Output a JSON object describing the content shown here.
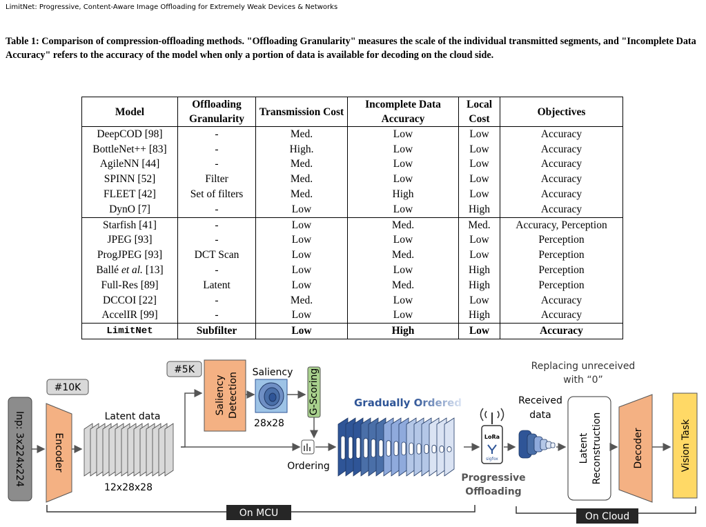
{
  "header": "LimitNet: Progressive, Content-Aware Image Offloading for Extremely Weak Devices & Networks",
  "caption": "Table 1: Comparison of compression-offloading methods. \"Offloading Granularity\" measures the scale of the individual transmitted segments, and \"Incomplete Data Accuracy\" refers to the accuracy of the model when only a portion of data is available for decoding on the cloud side.",
  "table": {
    "columns": [
      "Model",
      "Offloading Granularity",
      "Transmission Cost",
      "Incomplete Data Accuracy",
      "Local Cost",
      "Objectives"
    ],
    "rows": [
      [
        "DeepCOD [98]",
        "-",
        "Med.",
        "Low",
        "Low",
        "Accuracy"
      ],
      [
        "BottleNet++ [83]",
        "-",
        "High.",
        "Low",
        "Low",
        "Accuracy"
      ],
      [
        "AgileNN [44]",
        "-",
        "Med.",
        "Low",
        "Low",
        "Accuracy"
      ],
      [
        "SPINN [52]",
        "Filter",
        "Med.",
        "Low",
        "Low",
        "Accuracy"
      ],
      [
        "FLEET [42]",
        "Set of filters",
        "Med.",
        "High",
        "Low",
        "Accuracy"
      ],
      [
        "DynO [7]",
        "-",
        "Low",
        "Low",
        "High",
        "Accuracy"
      ],
      [
        "Starfish [41]",
        "-",
        "Low",
        "Med.",
        "Med.",
        "Accuracy, Perception"
      ],
      [
        "JPEG [93]",
        "-",
        "Low",
        "Low",
        "Low",
        "Perception"
      ],
      [
        "ProgJPEG [93]",
        "DCT Scan",
        "Low",
        "Med.",
        "Low",
        "Perception"
      ],
      [
        [
          "Ballé ",
          "et al.",
          " [13]"
        ],
        "-",
        "Low",
        "Low",
        "High",
        "Perception"
      ],
      [
        "Full-Res [89]",
        "Latent",
        "Low",
        "Med.",
        "High",
        "Perception"
      ],
      [
        "DCCOI [22]",
        "-",
        "Med.",
        "Low",
        "Low",
        "Accuracy"
      ],
      [
        "AccelIR [99]",
        "-",
        "Low",
        "Low",
        "High",
        "Accuracy"
      ],
      [
        "LimitNet",
        "Subfilter",
        "Low",
        "High",
        "Low",
        "Accuracy"
      ]
    ]
  },
  "figure": {
    "encoder_params": "#10K",
    "saliency_params": "#5K",
    "input": "Inp: 3x224x224",
    "encoder": "Encoder",
    "latent_label": "Latent data",
    "latent_shape": "12x28x28",
    "saliency_detection": [
      "Saliency",
      "Detection"
    ],
    "saliency": "Saliency",
    "saliency_shape": "28x28",
    "g_scoring": "G-Scoring",
    "ordering": "Ordering",
    "gradually_ordered": "Gradually Ordered",
    "lora": "LoRa",
    "sigfox": "sigfox",
    "progressive_offloading": [
      "Progressive",
      "Offloading"
    ],
    "received_data": [
      "Received",
      "data"
    ],
    "replacing": [
      "Replacing unreceived",
      "with “0”"
    ],
    "latent_reconstruction": [
      "Latent",
      "Reconstruction"
    ],
    "decoder": "Decoder",
    "vision_task": "Vision Task",
    "on_mcu": "On MCU",
    "on_cloud": "On Cloud"
  }
}
